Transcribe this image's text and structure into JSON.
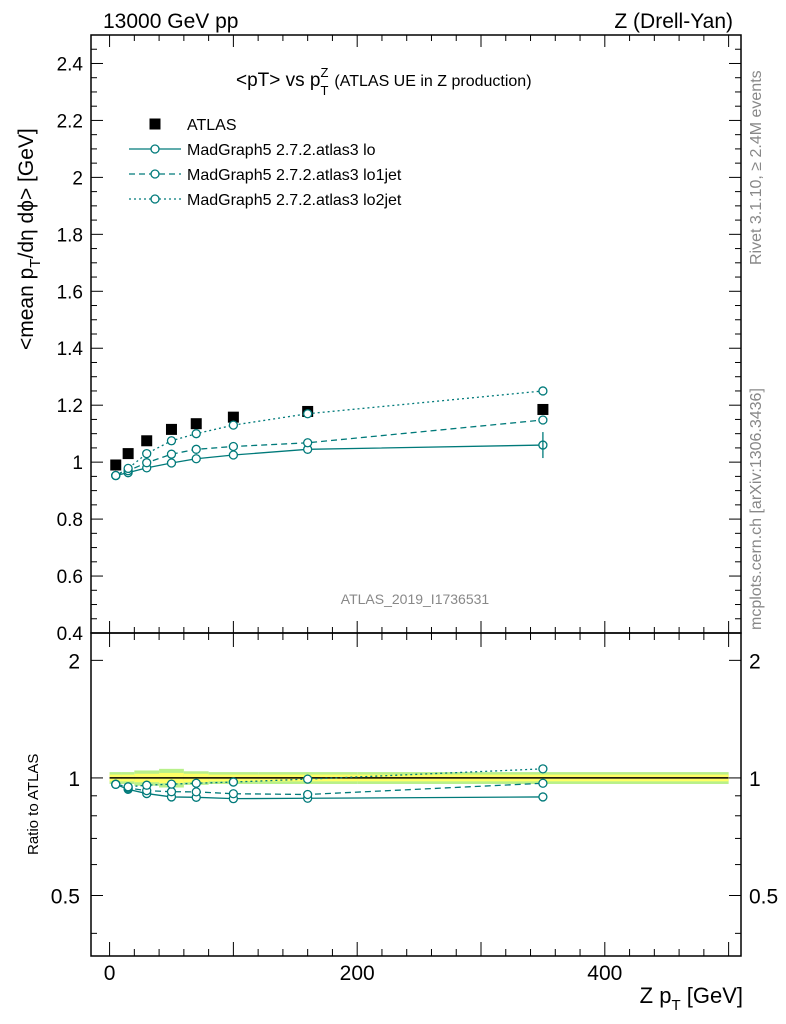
{
  "header": {
    "left": "13000 GeV pp",
    "right": "Z (Drell-Yan)"
  },
  "title": {
    "main": "<pT> vs p",
    "sup": "Z",
    "sub": "T",
    "paren": "(ATLAS UE in Z production)"
  },
  "side_labels": {
    "rivet": "Rivet 3.1.10, ≥ 2.4M events",
    "mcplots": "mcplots.cern.ch [arXiv:1306.3436]"
  },
  "analysis_id": "ATLAS_2019_I1736531",
  "colors": {
    "mc": "#007a7a",
    "band_inner": "#ffff66",
    "band_outer": "#b8f08a",
    "data": "#000000"
  },
  "chart_data": [
    {
      "type": "scatter",
      "panel": "main",
      "ylabel_parts": {
        "a": "<mean p",
        "sub1": "T",
        "b": "/dη dϕ> [GeV]"
      },
      "xlim": [
        -15,
        510
      ],
      "ylim": [
        0.4,
        2.5
      ],
      "yticks": [
        "0.4",
        "0.6",
        "0.8",
        "1",
        "1.2",
        "1.4",
        "1.6",
        "1.8",
        "2",
        "2.2",
        "2.4"
      ],
      "legend_position": "top-left",
      "series": [
        {
          "name": "ATLAS",
          "style": "square",
          "x": [
            5,
            15,
            30,
            50,
            70,
            100,
            160,
            350
          ],
          "y": [
            0.99,
            1.03,
            1.075,
            1.115,
            1.135,
            1.158,
            1.178,
            1.185
          ]
        },
        {
          "name": "MadGraph5 2.7.2.atlas3 lo",
          "style": "solid",
          "x": [
            5,
            15,
            30,
            50,
            70,
            100,
            160,
            350
          ],
          "y": [
            0.953,
            0.963,
            0.98,
            0.997,
            1.012,
            1.025,
            1.045,
            1.06
          ]
        },
        {
          "name": "MadGraph5 2.7.2.atlas3 lo1jet",
          "style": "dashed",
          "x": [
            5,
            15,
            30,
            50,
            70,
            100,
            160,
            350
          ],
          "y": [
            0.953,
            0.97,
            0.998,
            1.028,
            1.045,
            1.055,
            1.068,
            1.148
          ]
        },
        {
          "name": "MadGraph5 2.7.2.atlas3 lo2jet",
          "style": "dotted",
          "x": [
            5,
            15,
            30,
            50,
            70,
            100,
            160,
            350
          ],
          "y": [
            0.953,
            0.978,
            1.03,
            1.075,
            1.1,
            1.13,
            1.17,
            1.25
          ]
        }
      ]
    },
    {
      "type": "scatter",
      "panel": "ratio",
      "ylabel": "Ratio to ATLAS",
      "xlabel_parts": {
        "a": "Z p",
        "sub": "T",
        "b": " [GeV]"
      },
      "xlim": [
        -15,
        510
      ],
      "ylim": [
        0.35,
        2.35
      ],
      "log_y": true,
      "xticks": [
        "0",
        "200",
        "400"
      ],
      "yticks": [
        "0.5",
        "1",
        "2"
      ],
      "series": [
        {
          "name": "MadGraph5 2.7.2.atlas3 lo",
          "style": "solid",
          "x": [
            5,
            15,
            30,
            50,
            70,
            100,
            160,
            350
          ],
          "y": [
            0.963,
            0.935,
            0.912,
            0.894,
            0.892,
            0.885,
            0.887,
            0.894
          ]
        },
        {
          "name": "MadGraph5 2.7.2.atlas3 lo1jet",
          "style": "dashed",
          "x": [
            5,
            15,
            30,
            50,
            70,
            100,
            160,
            350
          ],
          "y": [
            0.963,
            0.942,
            0.928,
            0.922,
            0.921,
            0.911,
            0.907,
            0.969
          ]
        },
        {
          "name": "MadGraph5 2.7.2.atlas3 lo2jet",
          "style": "dotted",
          "x": [
            5,
            15,
            30,
            50,
            70,
            100,
            160,
            350
          ],
          "y": [
            0.963,
            0.949,
            0.958,
            0.964,
            0.969,
            0.976,
            0.993,
            1.055
          ]
        }
      ]
    }
  ]
}
